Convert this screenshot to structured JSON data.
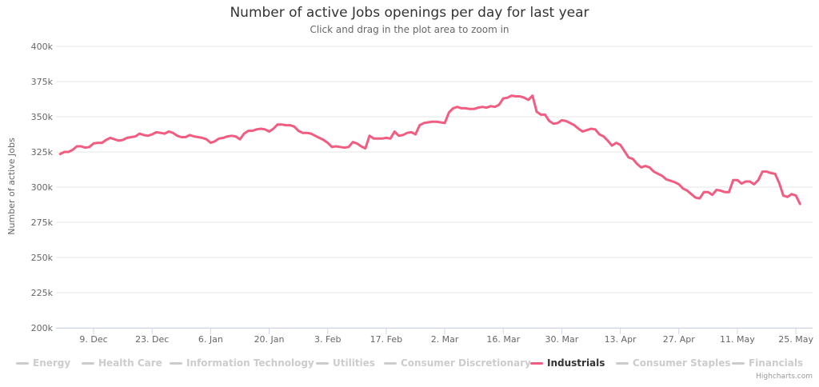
{
  "chart_data": {
    "type": "line",
    "title": "Number of active Jobs openings per day for last year",
    "subtitle": "Click and drag in the plot area to zoom in",
    "ylabel": "Number of active Jobs",
    "xlabel": "",
    "ylim": [
      200000,
      400000
    ],
    "y_ticks": [
      200000,
      225000,
      250000,
      275000,
      300000,
      325000,
      350000,
      375000,
      400000
    ],
    "y_tick_labels": [
      "200k",
      "225k",
      "250k",
      "275k",
      "300k",
      "325k",
      "350k",
      "375k",
      "400k"
    ],
    "xlim": [
      "2019-11-30",
      "2020-05-29"
    ],
    "x_ticks": [
      "2019-12-09",
      "2019-12-23",
      "2020-01-06",
      "2020-01-20",
      "2020-02-03",
      "2020-02-17",
      "2020-03-02",
      "2020-03-16",
      "2020-03-30",
      "2020-04-13",
      "2020-04-27",
      "2020-05-11",
      "2020-05-25"
    ],
    "x_tick_labels": [
      "9. Dec",
      "23. Dec",
      "6. Jan",
      "20. Jan",
      "3. Feb",
      "17. Feb",
      "2. Mar",
      "16. Mar",
      "30. Mar",
      "13. Apr",
      "27. Apr",
      "11. May",
      "25. May"
    ],
    "grid": "horizontal",
    "legend_position": "bottom",
    "series": [
      {
        "name": "Industrials",
        "color": "#f15c80",
        "visible": true,
        "points": [
          [
            "2019-12-01",
            323500
          ],
          [
            "2019-12-02",
            325000
          ],
          [
            "2019-12-03",
            325000
          ],
          [
            "2019-12-04",
            326500
          ],
          [
            "2019-12-05",
            329000
          ],
          [
            "2019-12-06",
            329000
          ],
          [
            "2019-12-07",
            328000
          ],
          [
            "2019-12-08",
            328500
          ],
          [
            "2019-12-09",
            331000
          ],
          [
            "2019-12-10",
            331500
          ],
          [
            "2019-12-11",
            331500
          ],
          [
            "2019-12-12",
            333500
          ],
          [
            "2019-12-13",
            335000
          ],
          [
            "2019-12-14",
            334000
          ],
          [
            "2019-12-15",
            333000
          ],
          [
            "2019-12-16",
            333500
          ],
          [
            "2019-12-17",
            335000
          ],
          [
            "2019-12-18",
            335500
          ],
          [
            "2019-12-19",
            336000
          ],
          [
            "2019-12-20",
            338000
          ],
          [
            "2019-12-21",
            337000
          ],
          [
            "2019-12-22",
            336500
          ],
          [
            "2019-12-23",
            337500
          ],
          [
            "2019-12-24",
            339000
          ],
          [
            "2019-12-25",
            338500
          ],
          [
            "2019-12-26",
            338000
          ],
          [
            "2019-12-27",
            339500
          ],
          [
            "2019-12-28",
            338500
          ],
          [
            "2019-12-29",
            336500
          ],
          [
            "2019-12-30",
            335500
          ],
          [
            "2019-12-31",
            335500
          ],
          [
            "2020-01-01",
            337000
          ],
          [
            "2020-01-02",
            336000
          ],
          [
            "2020-01-03",
            335500
          ],
          [
            "2020-01-04",
            335000
          ],
          [
            "2020-01-05",
            334000
          ],
          [
            "2020-01-06",
            331500
          ],
          [
            "2020-01-07",
            332500
          ],
          [
            "2020-01-08",
            334500
          ],
          [
            "2020-01-09",
            335000
          ],
          [
            "2020-01-10",
            336000
          ],
          [
            "2020-01-11",
            336500
          ],
          [
            "2020-01-12",
            336000
          ],
          [
            "2020-01-13",
            334000
          ],
          [
            "2020-01-14",
            338000
          ],
          [
            "2020-01-15",
            340000
          ],
          [
            "2020-01-16",
            340000
          ],
          [
            "2020-01-17",
            341000
          ],
          [
            "2020-01-18",
            341500
          ],
          [
            "2020-01-19",
            341000
          ],
          [
            "2020-01-20",
            339500
          ],
          [
            "2020-01-21",
            341500
          ],
          [
            "2020-01-22",
            344500
          ],
          [
            "2020-01-23",
            344500
          ],
          [
            "2020-01-24",
            344000
          ],
          [
            "2020-01-25",
            344000
          ],
          [
            "2020-01-26",
            343000
          ],
          [
            "2020-01-27",
            340000
          ],
          [
            "2020-01-28",
            338500
          ],
          [
            "2020-01-29",
            338500
          ],
          [
            "2020-01-30",
            338000
          ],
          [
            "2020-01-31",
            336500
          ],
          [
            "2020-02-01",
            335000
          ],
          [
            "2020-02-02",
            333500
          ],
          [
            "2020-02-03",
            331500
          ],
          [
            "2020-02-04",
            328500
          ],
          [
            "2020-02-05",
            329000
          ],
          [
            "2020-02-06",
            328500
          ],
          [
            "2020-02-07",
            328000
          ],
          [
            "2020-02-08",
            328500
          ],
          [
            "2020-02-09",
            332000
          ],
          [
            "2020-02-10",
            331000
          ],
          [
            "2020-02-11",
            329000
          ],
          [
            "2020-02-12",
            327500
          ],
          [
            "2020-02-13",
            336500
          ],
          [
            "2020-02-14",
            334500
          ],
          [
            "2020-02-15",
            334500
          ],
          [
            "2020-02-16",
            334500
          ],
          [
            "2020-02-17",
            335000
          ],
          [
            "2020-02-18",
            334500
          ],
          [
            "2020-02-19",
            339500
          ],
          [
            "2020-02-20",
            336500
          ],
          [
            "2020-02-21",
            337000
          ],
          [
            "2020-02-22",
            338500
          ],
          [
            "2020-02-23",
            339000
          ],
          [
            "2020-02-24",
            337500
          ],
          [
            "2020-02-25",
            344000
          ],
          [
            "2020-02-26",
            345500
          ],
          [
            "2020-02-27",
            346000
          ],
          [
            "2020-02-28",
            346500
          ],
          [
            "2020-02-29",
            346500
          ],
          [
            "2020-03-01",
            346000
          ],
          [
            "2020-03-02",
            345500
          ],
          [
            "2020-03-03",
            353000
          ],
          [
            "2020-03-04",
            356000
          ],
          [
            "2020-03-05",
            357000
          ],
          [
            "2020-03-06",
            356000
          ],
          [
            "2020-03-07",
            356000
          ],
          [
            "2020-03-08",
            355500
          ],
          [
            "2020-03-09",
            355500
          ],
          [
            "2020-03-10",
            356500
          ],
          [
            "2020-03-11",
            357000
          ],
          [
            "2020-03-12",
            356500
          ],
          [
            "2020-03-13",
            357500
          ],
          [
            "2020-03-14",
            357000
          ],
          [
            "2020-03-15",
            358500
          ],
          [
            "2020-03-16",
            363000
          ],
          [
            "2020-03-17",
            363500
          ],
          [
            "2020-03-18",
            365000
          ],
          [
            "2020-03-19",
            364500
          ],
          [
            "2020-03-20",
            364500
          ],
          [
            "2020-03-21",
            363500
          ],
          [
            "2020-03-22",
            362000
          ],
          [
            "2020-03-23",
            365000
          ],
          [
            "2020-03-24",
            353500
          ],
          [
            "2020-03-25",
            351500
          ],
          [
            "2020-03-26",
            351500
          ],
          [
            "2020-03-27",
            347000
          ],
          [
            "2020-03-28",
            345000
          ],
          [
            "2020-03-29",
            345500
          ],
          [
            "2020-03-30",
            347500
          ],
          [
            "2020-03-31",
            347000
          ],
          [
            "2020-04-01",
            345500
          ],
          [
            "2020-04-02",
            344000
          ],
          [
            "2020-04-03",
            341500
          ],
          [
            "2020-04-04",
            339500
          ],
          [
            "2020-04-05",
            340500
          ],
          [
            "2020-04-06",
            341500
          ],
          [
            "2020-04-07",
            341000
          ],
          [
            "2020-04-08",
            337500
          ],
          [
            "2020-04-09",
            336000
          ],
          [
            "2020-04-10",
            333000
          ],
          [
            "2020-04-11",
            329500
          ],
          [
            "2020-04-12",
            331500
          ],
          [
            "2020-04-13",
            330000
          ],
          [
            "2020-04-14",
            325500
          ],
          [
            "2020-04-15",
            321000
          ],
          [
            "2020-04-16",
            320000
          ],
          [
            "2020-04-17",
            316500
          ],
          [
            "2020-04-18",
            314000
          ],
          [
            "2020-04-19",
            315000
          ],
          [
            "2020-04-20",
            314000
          ],
          [
            "2020-04-21",
            311000
          ],
          [
            "2020-04-22",
            309500
          ],
          [
            "2020-04-23",
            308000
          ],
          [
            "2020-04-24",
            305500
          ],
          [
            "2020-04-25",
            304500
          ],
          [
            "2020-04-26",
            303500
          ],
          [
            "2020-04-27",
            302000
          ],
          [
            "2020-04-28",
            299000
          ],
          [
            "2020-04-29",
            297500
          ],
          [
            "2020-04-30",
            295000
          ],
          [
            "2020-05-01",
            292500
          ],
          [
            "2020-05-02",
            292000
          ],
          [
            "2020-05-03",
            296500
          ],
          [
            "2020-05-04",
            296500
          ],
          [
            "2020-05-05",
            294500
          ],
          [
            "2020-05-06",
            298000
          ],
          [
            "2020-05-07",
            297500
          ],
          [
            "2020-05-08",
            296500
          ],
          [
            "2020-05-09",
            296500
          ],
          [
            "2020-05-10",
            305000
          ],
          [
            "2020-05-11",
            305000
          ],
          [
            "2020-05-12",
            302500
          ],
          [
            "2020-05-13",
            304000
          ],
          [
            "2020-05-14",
            304000
          ],
          [
            "2020-05-15",
            302000
          ],
          [
            "2020-05-16",
            305000
          ],
          [
            "2020-05-17",
            311000
          ],
          [
            "2020-05-18",
            311000
          ],
          [
            "2020-05-19",
            310000
          ],
          [
            "2020-05-20",
            309500
          ],
          [
            "2020-05-21",
            303000
          ],
          [
            "2020-05-22",
            294000
          ],
          [
            "2020-05-23",
            293000
          ],
          [
            "2020-05-24",
            295000
          ],
          [
            "2020-05-25",
            294000
          ],
          [
            "2020-05-26",
            288000
          ]
        ]
      }
    ]
  },
  "legend": {
    "items": [
      {
        "label": "Energy",
        "active": false
      },
      {
        "label": "Health Care",
        "active": false
      },
      {
        "label": "Information Technology",
        "active": false
      },
      {
        "label": "Utilities",
        "active": false
      },
      {
        "label": "Consumer Discretionary",
        "active": false
      },
      {
        "label": "Industrials",
        "active": true,
        "color": "#f15c80"
      },
      {
        "label": "Consumer Staples",
        "active": false
      },
      {
        "label": "Financials",
        "active": false
      }
    ],
    "inactive_color": "#cccccc",
    "active_text_color": "#333333"
  },
  "credits": "Highcharts.com"
}
